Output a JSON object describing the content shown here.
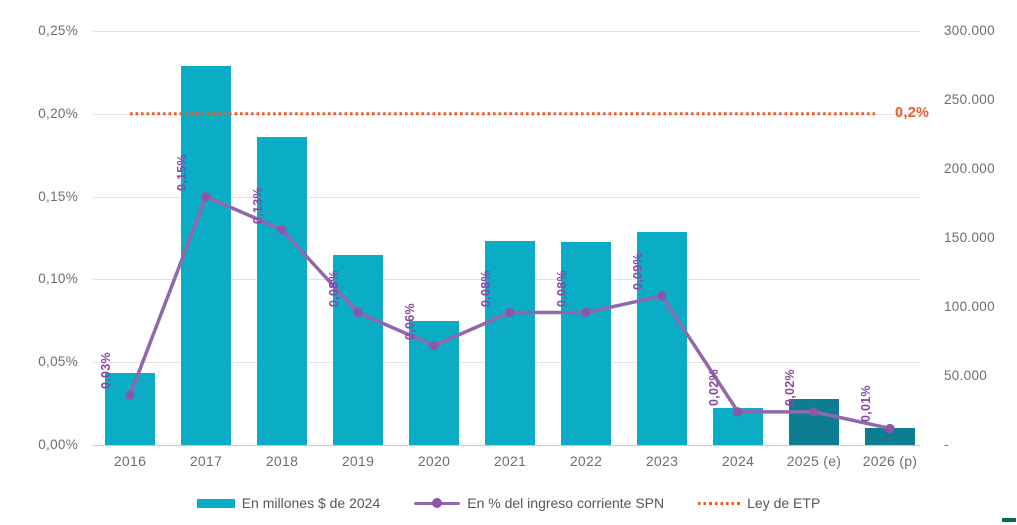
{
  "colors": {
    "bar": "#0BACC6",
    "bar_projected": "#0D7E92",
    "line": "#9167AE",
    "marker": "#8B57A6",
    "point_label": "#8E47A5",
    "reference": "#F15A22",
    "reference_label": "#F15A22",
    "axis_text": "#6D6E71",
    "legend_text": "#55565A",
    "gridline": "#E3E3E6",
    "axis_line": "#C9C9CD",
    "corner_mark": "#00713F"
  },
  "chart_data": {
    "type": "bar",
    "subtype": "combo-bar-line-dual-axis",
    "title": "",
    "categories": [
      "2016",
      "2017",
      "2018",
      "2019",
      "2020",
      "2021",
      "2022",
      "2023",
      "2024",
      "2025 (e)",
      "2026 (p)"
    ],
    "series": [
      {
        "name": "En millones $ de 2024",
        "type": "bar",
        "axis": "right",
        "values": [
          52000,
          275000,
          223000,
          138000,
          90000,
          148000,
          147000,
          154000,
          27000,
          33000,
          12000
        ],
        "bar_styles": [
          "normal",
          "normal",
          "normal",
          "normal",
          "normal",
          "normal",
          "normal",
          "normal",
          "normal",
          "projected",
          "projected"
        ]
      },
      {
        "name": "En % del ingreso corriente SPN",
        "type": "line",
        "axis": "left",
        "values": [
          0.03,
          0.15,
          0.13,
          0.08,
          0.06,
          0.08,
          0.08,
          0.09,
          0.02,
          0.02,
          0.01
        ],
        "point_labels": [
          "0,03%",
          "0,15%",
          "0,13%",
          "0,08%",
          "0,06%",
          "0,08%",
          "0,08%",
          "0,09%",
          "0,02%",
          "0,02%",
          "0,01%"
        ]
      },
      {
        "name": "Ley de ETP",
        "type": "reference",
        "axis": "left",
        "value": 0.2,
        "label": "0,2%"
      }
    ],
    "y_left": {
      "min": 0,
      "max": 0.25,
      "tick_values": [
        0.25,
        0.2,
        0.15,
        0.1,
        0.05,
        0
      ],
      "tick_labels": [
        "0,25%",
        "0,20%",
        "0,15%",
        "0,10%",
        "0,05%",
        "0,00%"
      ]
    },
    "y_right": {
      "min": 0,
      "max": 300000,
      "tick_values": [
        300000,
        250000,
        200000,
        150000,
        100000,
        50000,
        0
      ],
      "tick_labels": [
        "300.000",
        "250.000",
        "200.000",
        "150.000",
        "100.000",
        "50.000",
        "-"
      ]
    },
    "grid": "horizontal",
    "legend": {
      "position": "bottom",
      "items": [
        {
          "label": "En millones $ de 2024",
          "swatch": "bar"
        },
        {
          "label": "En % del ingreso corriente SPN",
          "swatch": "line-marker"
        },
        {
          "label": "Ley de ETP",
          "swatch": "dotted"
        }
      ]
    }
  }
}
